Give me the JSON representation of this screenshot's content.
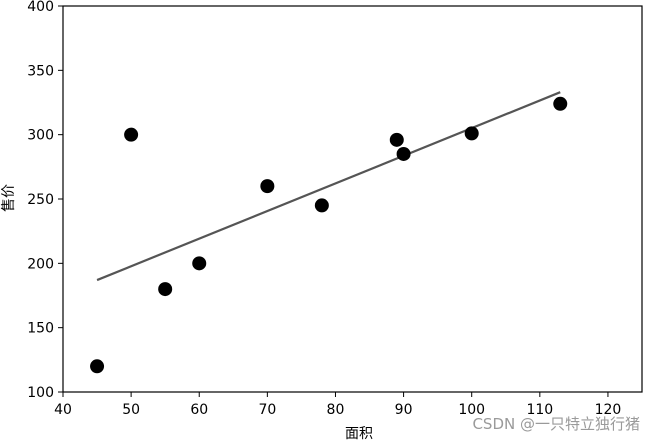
{
  "chart_data": {
    "type": "scatter",
    "title": "",
    "xlabel": "面积",
    "ylabel": "售价",
    "xlim": [
      40,
      125
    ],
    "ylim": [
      100,
      400
    ],
    "xticks": [
      40,
      50,
      60,
      70,
      80,
      90,
      100,
      110,
      120
    ],
    "yticks": [
      100,
      150,
      200,
      250,
      300,
      350,
      400
    ],
    "grid": false,
    "points": {
      "x": [
        45,
        50,
        55,
        60,
        70,
        78,
        89,
        90,
        100,
        113
      ],
      "y": [
        120,
        300,
        180,
        200,
        260,
        245,
        296,
        285,
        301,
        324
      ]
    },
    "fit_line": {
      "x": [
        45,
        113
      ],
      "y": [
        187,
        333
      ]
    },
    "colors": {
      "points": "#000000",
      "line": "#555555",
      "axes": "#000000"
    }
  },
  "watermark": "CSDN @一只特立独行猪"
}
